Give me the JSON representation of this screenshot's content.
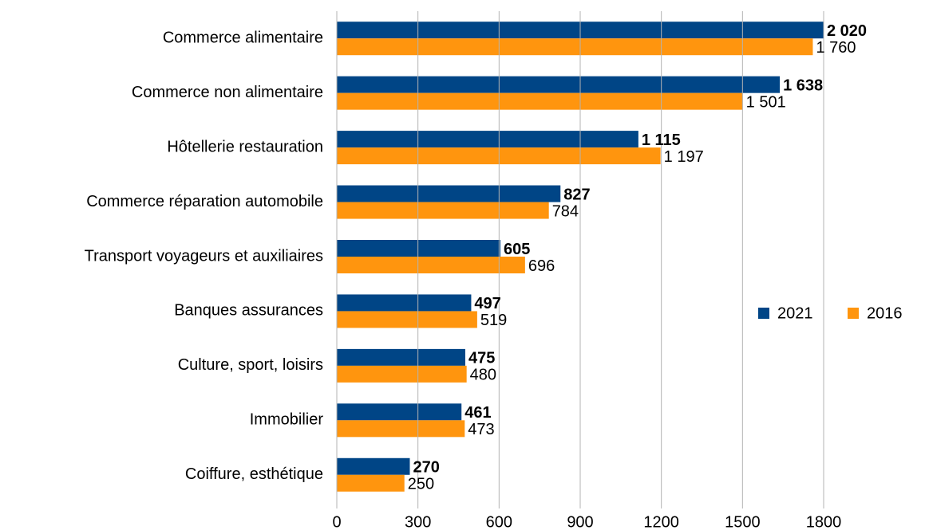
{
  "chart_data": {
    "type": "hbar",
    "categories": [
      "Commerce alimentaire",
      "Commerce non alimentaire",
      "Hôtellerie restauration",
      "Commerce réparation automobile",
      "Transport voyageurs et auxiliaires",
      "Banques assurances",
      "Culture, sport, loisirs",
      "Immobilier",
      "Coiffure, esthétique"
    ],
    "series": [
      {
        "name": "2021",
        "color": "#004586",
        "values": [
          2020,
          1638,
          1115,
          827,
          605,
          497,
          475,
          461,
          270
        ],
        "value_labels": [
          "2 020",
          "1 638",
          "1 115",
          "827",
          "605",
          "497",
          "475",
          "461",
          "270"
        ]
      },
      {
        "name": "2016",
        "color": "#ff950e",
        "values": [
          1760,
          1501,
          1197,
          784,
          696,
          519,
          480,
          473,
          250
        ],
        "value_labels": [
          "1 760",
          "1 501",
          "1 197",
          "784",
          "696",
          "519",
          "480",
          "473",
          "250"
        ]
      }
    ],
    "xlim": [
      0,
      1800
    ],
    "xticks": [
      0,
      300,
      600,
      900,
      1200,
      1500,
      1800
    ],
    "grid": true,
    "legend": "right"
  }
}
